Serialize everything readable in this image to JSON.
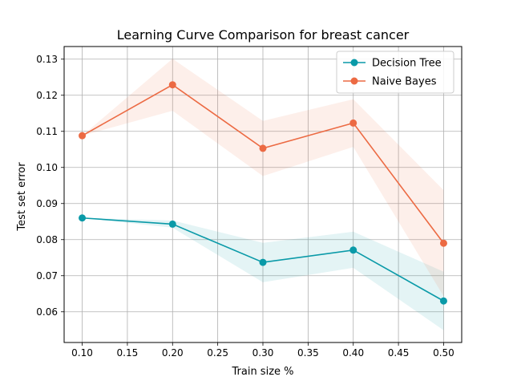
{
  "chart_data": {
    "type": "line",
    "title": "Learning Curve Comparison for breast cancer",
    "xlabel": "Train size %",
    "ylabel": "Test set error",
    "xlim": [
      0.08,
      0.52
    ],
    "ylim": [
      0.0515,
      0.1335
    ],
    "x_ticks": [
      0.1,
      0.15,
      0.2,
      0.25,
      0.3,
      0.35,
      0.4,
      0.45,
      0.5
    ],
    "x_tick_labels": [
      "0.10",
      "0.15",
      "0.20",
      "0.25",
      "0.30",
      "0.35",
      "0.40",
      "0.45",
      "0.50"
    ],
    "y_ticks": [
      0.06,
      0.07,
      0.08,
      0.09,
      0.1,
      0.11,
      0.12,
      0.13
    ],
    "y_tick_labels": [
      "0.06",
      "0.07",
      "0.08",
      "0.09",
      "0.10",
      "0.11",
      "0.12",
      "0.13"
    ],
    "grid": true,
    "legend_position": "top-right",
    "x": [
      0.1,
      0.2,
      0.3,
      0.4,
      0.5
    ],
    "series": [
      {
        "name": "Decision Tree",
        "color": "#0a9aa8",
        "values": [
          0.086,
          0.0843,
          0.0737,
          0.0771,
          0.063
        ],
        "band_lower": [
          0.086,
          0.0833,
          0.0682,
          0.0722,
          0.0549
        ],
        "band_upper": [
          0.086,
          0.0853,
          0.0791,
          0.0822,
          0.0711
        ]
      },
      {
        "name": "Naive Bayes",
        "color": "#ec6a43",
        "values": [
          0.1088,
          0.1229,
          0.1053,
          0.1123,
          0.079
        ],
        "band_lower": [
          0.1088,
          0.1157,
          0.0976,
          0.1057,
          0.0643
        ],
        "band_upper": [
          0.1088,
          0.1301,
          0.1129,
          0.1189,
          0.0937
        ]
      }
    ]
  }
}
